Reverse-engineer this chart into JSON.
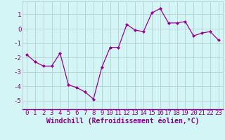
{
  "x": [
    0,
    1,
    2,
    3,
    4,
    5,
    6,
    7,
    8,
    9,
    10,
    11,
    12,
    13,
    14,
    15,
    16,
    17,
    18,
    19,
    20,
    21,
    22,
    23
  ],
  "y": [
    -1.8,
    -2.3,
    -2.6,
    -2.6,
    -1.7,
    -3.9,
    -4.1,
    -4.4,
    -4.9,
    -2.7,
    -1.3,
    -1.3,
    0.3,
    -0.1,
    -0.2,
    1.1,
    1.4,
    0.4,
    0.4,
    0.5,
    -0.5,
    -0.3,
    -0.2,
    -0.8
  ],
  "line_color": "#990099",
  "marker": "D",
  "marker_size": 2,
  "bg_color": "#d4f5f5",
  "grid_color": "#b0c8c8",
  "xlabel": "Windchill (Refroidissement éolien,°C)",
  "xlabel_fontsize": 7,
  "ytick_labels": [
    "1",
    "0",
    "-1",
    "-2",
    "-3",
    "-4",
    "-5"
  ],
  "ytick_values": [
    1,
    0,
    -1,
    -2,
    -3,
    -4,
    -5
  ],
  "ylim": [
    -5.6,
    1.9
  ],
  "xlim": [
    -0.5,
    23.5
  ],
  "xtick_values": [
    0,
    1,
    2,
    3,
    4,
    5,
    6,
    7,
    8,
    9,
    10,
    11,
    12,
    13,
    14,
    15,
    16,
    17,
    18,
    19,
    20,
    21,
    22,
    23
  ],
  "tick_fontsize": 6.5,
  "label_color": "#800080"
}
